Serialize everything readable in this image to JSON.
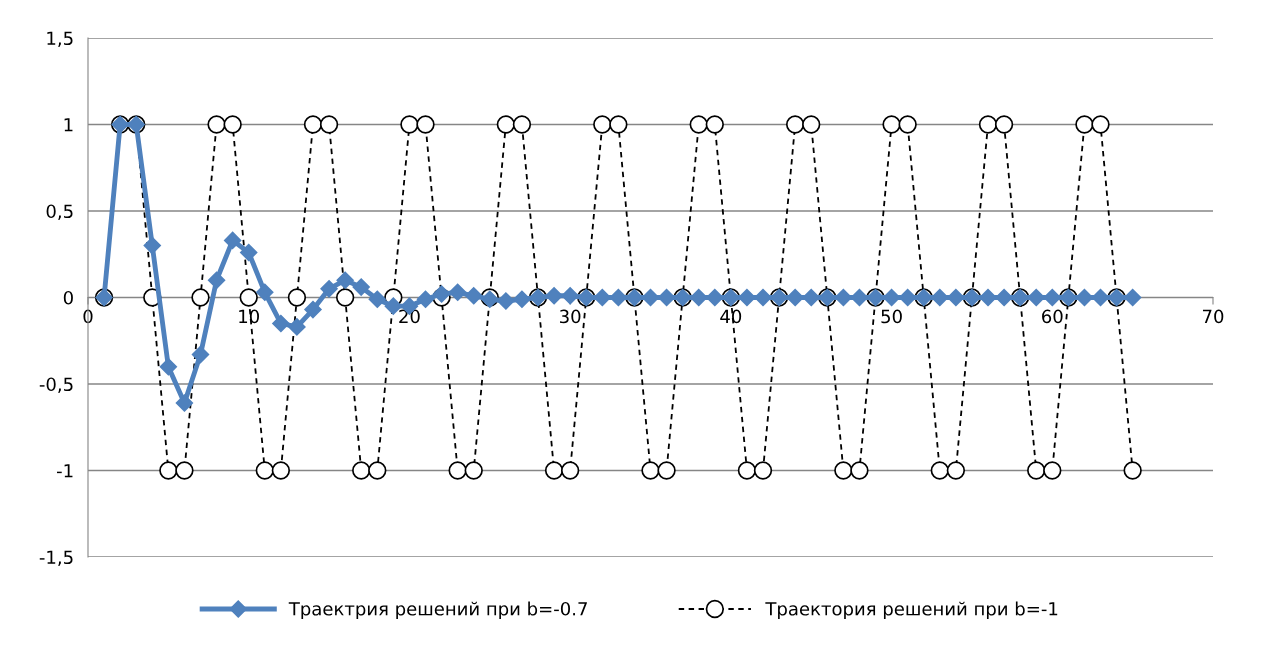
{
  "chart_data": {
    "type": "line",
    "x": [
      1,
      2,
      3,
      4,
      5,
      6,
      7,
      8,
      9,
      10,
      11,
      12,
      13,
      14,
      15,
      16,
      17,
      18,
      19,
      20,
      21,
      22,
      23,
      24,
      25,
      26,
      27,
      28,
      29,
      30,
      31,
      32,
      33,
      34,
      35,
      36,
      37,
      38,
      39,
      40,
      41,
      42,
      43,
      44,
      45,
      46,
      47,
      48,
      49,
      50,
      51,
      52,
      53,
      54,
      55,
      56,
      57,
      58,
      59,
      60,
      61,
      62,
      63,
      64,
      65
    ],
    "series": [
      {
        "name": "Траектрия решений при b=-0.7",
        "color": "#4f81bd",
        "marker": "diamond",
        "line_style": "solid",
        "values": [
          0,
          1,
          1,
          0.3,
          -0.4,
          -0.61,
          -0.33,
          0.1,
          0.33,
          0.26,
          0.03,
          -0.15,
          -0.17,
          -0.07,
          0.05,
          0.1,
          0.06,
          -0.01,
          -0.05,
          -0.05,
          -0.01,
          0.02,
          0.03,
          0.01,
          -0.01,
          -0.02,
          -0.01,
          0,
          0.01,
          0.01,
          0,
          0,
          0,
          0,
          0,
          0,
          0,
          0,
          0,
          0,
          0,
          0,
          0,
          0,
          0,
          0,
          0,
          0,
          0,
          0,
          0,
          0,
          0,
          0,
          0,
          0,
          0,
          0,
          0,
          0,
          0,
          0,
          0,
          0,
          0
        ]
      },
      {
        "name": "Траектория решений при b=-1",
        "color": "#000000",
        "marker": "circle",
        "line_style": "dashed",
        "values": [
          0,
          1,
          1,
          0,
          -1,
          -1,
          0,
          1,
          1,
          0,
          -1,
          -1,
          0,
          1,
          1,
          0,
          -1,
          -1,
          0,
          1,
          1,
          0,
          -1,
          -1,
          0,
          1,
          1,
          0,
          -1,
          -1,
          0,
          1,
          1,
          0,
          -1,
          -1,
          0,
          1,
          1,
          0,
          -1,
          -1,
          0,
          1,
          1,
          0,
          -1,
          -1,
          0,
          1,
          1,
          0,
          -1,
          -1,
          0,
          1,
          1,
          0,
          -1,
          -1,
          0,
          1,
          1,
          0,
          -1
        ]
      }
    ],
    "xlim": [
      0,
      70
    ],
    "xticks": [
      0,
      10,
      20,
      30,
      40,
      50,
      60,
      70
    ],
    "ylim": [
      -1.5,
      1.5
    ],
    "yticks": [
      {
        "value": -1.5,
        "label": "-1,5"
      },
      {
        "value": -1,
        "label": "-1"
      },
      {
        "value": -0.5,
        "label": "-0,5"
      },
      {
        "value": 0,
        "label": "0"
      },
      {
        "value": 0.5,
        "label": "0,5"
      },
      {
        "value": 1,
        "label": "1"
      },
      {
        "value": 1.5,
        "label": "1,5"
      }
    ],
    "grid": "y",
    "legend": "bottom"
  }
}
